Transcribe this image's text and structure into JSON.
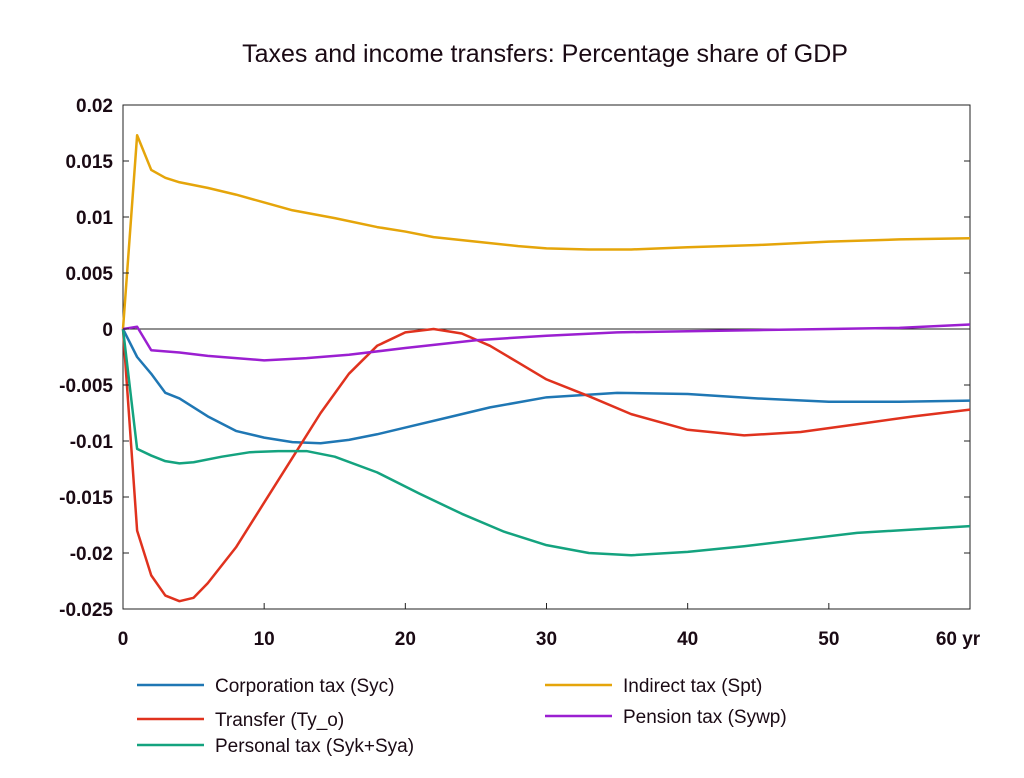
{
  "chart_data": {
    "type": "line",
    "title": "Taxes and income transfers: Percentage share of GDP",
    "xlabel": "",
    "ylabel": "",
    "x_unit_label": "yr",
    "xlim": [
      0,
      60
    ],
    "ylim": [
      -0.025,
      0.02
    ],
    "x_ticks": [
      0,
      10,
      20,
      30,
      40,
      50,
      60
    ],
    "x_tick_labels": [
      "0",
      "10",
      "20",
      "30",
      "40",
      "50",
      "60 yr"
    ],
    "y_ticks": [
      0.02,
      0.015,
      0.01,
      0.005,
      0,
      -0.005,
      -0.01,
      -0.015,
      -0.02,
      -0.025
    ],
    "y_tick_labels": [
      "0.02",
      "0.015",
      "0.01",
      "0.005",
      "0",
      "-0.005",
      "-0.01",
      "-0.015",
      "-0.02",
      "-0.025"
    ],
    "grid": false,
    "zero_line": true,
    "legend_position": "bottom",
    "series": [
      {
        "name": "Corporation tax (Syc)",
        "color": "#1f77b4",
        "x": [
          0,
          1,
          2,
          3,
          4,
          6,
          8,
          10,
          12,
          14,
          16,
          18,
          20,
          23,
          26,
          30,
          35,
          40,
          45,
          50,
          55,
          60
        ],
        "values": [
          0,
          -0.0025,
          -0.004,
          -0.0057,
          -0.0062,
          -0.0078,
          -0.0091,
          -0.0097,
          -0.0101,
          -0.0102,
          -0.0099,
          -0.0094,
          -0.0088,
          -0.0079,
          -0.007,
          -0.0061,
          -0.0057,
          -0.0058,
          -0.0062,
          -0.0065,
          -0.0065,
          -0.0064
        ]
      },
      {
        "name": "Transfer (Ty_o)",
        "color": "#e0321e",
        "x": [
          0,
          1,
          2,
          3,
          4,
          5,
          6,
          8,
          10,
          12,
          14,
          16,
          18,
          20,
          22,
          24,
          26,
          28,
          30,
          33,
          36,
          40,
          44,
          48,
          52,
          56,
          60
        ],
        "values": [
          0,
          -0.018,
          -0.022,
          -0.0238,
          -0.0243,
          -0.024,
          -0.0227,
          -0.0195,
          -0.0155,
          -0.0115,
          -0.0075,
          -0.004,
          -0.0015,
          -0.0003,
          0,
          -0.0004,
          -0.0015,
          -0.003,
          -0.0045,
          -0.006,
          -0.0076,
          -0.009,
          -0.0095,
          -0.0092,
          -0.0085,
          -0.0078,
          -0.0072
        ]
      },
      {
        "name": "Personal tax (Syk+Sya)",
        "color": "#14a37f",
        "x": [
          0,
          1,
          2,
          3,
          4,
          5,
          7,
          9,
          11,
          13,
          15,
          18,
          21,
          24,
          27,
          30,
          33,
          36,
          40,
          44,
          48,
          52,
          56,
          60
        ],
        "values": [
          0,
          -0.0107,
          -0.0113,
          -0.0118,
          -0.012,
          -0.0119,
          -0.0114,
          -0.011,
          -0.0109,
          -0.0109,
          -0.0114,
          -0.0128,
          -0.0147,
          -0.0165,
          -0.0181,
          -0.0193,
          -0.02,
          -0.0202,
          -0.0199,
          -0.0194,
          -0.0188,
          -0.0182,
          -0.0179,
          -0.0176
        ]
      },
      {
        "name": "Indirect tax (Spt)",
        "color": "#e5a50a",
        "x": [
          0,
          1,
          2,
          3,
          4,
          6,
          8,
          10,
          12,
          15,
          18,
          20,
          22,
          25,
          28,
          30,
          33,
          36,
          40,
          45,
          50,
          55,
          60
        ],
        "values": [
          0,
          0.0173,
          0.0142,
          0.0135,
          0.0131,
          0.0126,
          0.012,
          0.0113,
          0.0106,
          0.0099,
          0.0091,
          0.0087,
          0.0082,
          0.0078,
          0.0074,
          0.0072,
          0.0071,
          0.0071,
          0.0073,
          0.0075,
          0.0078,
          0.008,
          0.0081
        ]
      },
      {
        "name": "Pension tax (Sywp)",
        "color": "#9b1fd1",
        "x": [
          0,
          1,
          2,
          4,
          6,
          8,
          10,
          13,
          16,
          20,
          25,
          30,
          35,
          40,
          45,
          50,
          55,
          60
        ],
        "values": [
          0,
          0.0002,
          -0.0019,
          -0.0021,
          -0.0024,
          -0.0026,
          -0.0028,
          -0.0026,
          -0.0023,
          -0.0017,
          -0.001,
          -0.0006,
          -0.0003,
          -0.0002,
          -0.0001,
          0,
          0.0001,
          0.0004
        ]
      }
    ]
  }
}
